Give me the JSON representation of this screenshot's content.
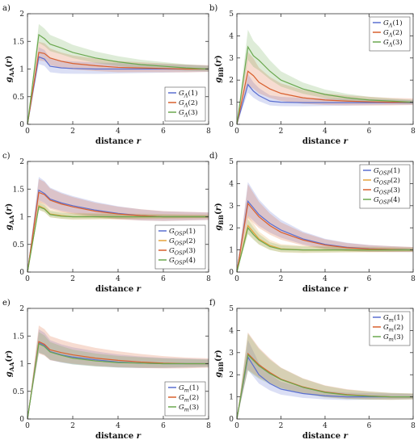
{
  "chart_data": [
    {
      "panel": "a)",
      "type": "line",
      "xlabel": "distance r",
      "ylabel": "g_AA(r)",
      "xlim": [
        0,
        8
      ],
      "ylim": [
        0,
        2
      ],
      "xticks": [
        0,
        2,
        4,
        6,
        8
      ],
      "yticks": [
        0,
        0.5,
        1,
        1.5,
        2
      ],
      "legend": "bottom-right",
      "x": [
        0,
        0.5,
        0.75,
        1,
        1.5,
        2,
        3,
        4,
        5,
        6,
        7,
        8
      ],
      "series": [
        {
          "name": "GΛ(1)",
          "color": "#5b6fd0",
          "values": [
            0,
            1.22,
            1.18,
            1.05,
            1.02,
            1.01,
            1.0,
            1.0,
            1.0,
            1.0,
            1.0,
            1.0
          ],
          "band": 0.18
        },
        {
          "name": "GΛ(2)",
          "color": "#d9602e",
          "values": [
            0,
            1.3,
            1.28,
            1.2,
            1.14,
            1.1,
            1.06,
            1.03,
            1.02,
            1.01,
            1.0,
            1.0
          ],
          "band": 0.2
        },
        {
          "name": "GΛ(3)",
          "color": "#6aa84f",
          "values": [
            0,
            1.62,
            1.55,
            1.45,
            1.38,
            1.3,
            1.2,
            1.13,
            1.08,
            1.05,
            1.02,
            1.0
          ],
          "band": 0.2
        }
      ]
    },
    {
      "panel": "b)",
      "type": "line",
      "xlabel": "distance r",
      "ylabel": "g_BB(r)",
      "xlim": [
        0,
        8
      ],
      "ylim": [
        0,
        5
      ],
      "xticks": [
        0,
        2,
        4,
        6,
        8
      ],
      "yticks": [
        0,
        1,
        2,
        3,
        4,
        5
      ],
      "legend": "top-right",
      "x": [
        0,
        0.5,
        0.75,
        1,
        1.5,
        2,
        3,
        4,
        5,
        6,
        7,
        8
      ],
      "series": [
        {
          "name": "GΛ(1)",
          "color": "#5b6fd0",
          "values": [
            0,
            1.8,
            1.5,
            1.3,
            1.05,
            1.0,
            0.98,
            0.98,
            0.98,
            0.98,
            0.98,
            0.98
          ],
          "band": 0.5
        },
        {
          "name": "GΛ(2)",
          "color": "#d9602e",
          "values": [
            0,
            2.4,
            2.2,
            1.9,
            1.6,
            1.4,
            1.2,
            1.1,
            1.05,
            1.02,
            1.0,
            1.0
          ],
          "band": 0.9
        },
        {
          "name": "GΛ(3)",
          "color": "#6aa84f",
          "values": [
            0,
            3.5,
            3.1,
            2.9,
            2.4,
            2.0,
            1.6,
            1.35,
            1.2,
            1.1,
            1.05,
            1.0
          ],
          "band": 0.8
        }
      ]
    },
    {
      "panel": "c)",
      "type": "line",
      "xlabel": "distance r",
      "ylabel": "g_AA(r)",
      "xlim": [
        0,
        8
      ],
      "ylim": [
        0,
        2
      ],
      "xticks": [
        0,
        2,
        4,
        6,
        8
      ],
      "yticks": [
        0,
        0.5,
        1,
        1.5,
        2
      ],
      "legend": "bottom-right",
      "x": [
        0,
        0.5,
        0.75,
        1,
        1.5,
        2,
        3,
        4,
        5,
        6,
        7,
        8
      ],
      "series": [
        {
          "name": "GOSP(1)",
          "color": "#5b6fd0",
          "values": [
            0,
            1.48,
            1.42,
            1.32,
            1.25,
            1.2,
            1.12,
            1.06,
            1.02,
            1.0,
            1.0,
            1.0
          ],
          "band": 0.25
        },
        {
          "name": "GOSP(2)",
          "color": "#e6a23c",
          "values": [
            0,
            1.2,
            1.15,
            1.05,
            1.02,
            1.0,
            1.0,
            1.0,
            1.0,
            1.0,
            1.0,
            1.0
          ],
          "band": 0.1
        },
        {
          "name": "GOSP(3)",
          "color": "#d9602e",
          "values": [
            0,
            1.44,
            1.4,
            1.3,
            1.23,
            1.18,
            1.1,
            1.05,
            1.02,
            1.0,
            1.0,
            1.0
          ],
          "band": 0.25
        },
        {
          "name": "GOSP(4)",
          "color": "#6aa84f",
          "values": [
            0,
            1.18,
            1.14,
            1.04,
            1.01,
            1.0,
            1.0,
            1.0,
            1.0,
            1.0,
            1.0,
            1.0
          ],
          "band": 0.08
        }
      ]
    },
    {
      "panel": "d)",
      "type": "line",
      "xlabel": "distance r",
      "ylabel": "g_BB(r)",
      "xlim": [
        0,
        8
      ],
      "ylim": [
        0,
        5
      ],
      "xticks": [
        0,
        2,
        4,
        6,
        8
      ],
      "yticks": [
        0,
        1,
        2,
        3,
        4,
        5
      ],
      "legend": "top-right",
      "x": [
        0,
        0.5,
        0.75,
        1,
        1.5,
        2,
        3,
        4,
        5,
        6,
        7,
        8
      ],
      "series": [
        {
          "name": "GOSP(1)",
          "color": "#5b6fd0",
          "values": [
            0,
            3.2,
            2.9,
            2.6,
            2.2,
            1.9,
            1.5,
            1.25,
            1.12,
            1.05,
            1.02,
            1.0
          ],
          "band": 0.9
        },
        {
          "name": "GOSP(2)",
          "color": "#e6a23c",
          "values": [
            0,
            2.1,
            1.8,
            1.5,
            1.2,
            1.05,
            1.0,
            1.0,
            1.0,
            1.0,
            1.0,
            1.0
          ],
          "band": 0.5
        },
        {
          "name": "GOSP(3)",
          "color": "#d9602e",
          "values": [
            0,
            3.1,
            2.8,
            2.5,
            2.1,
            1.8,
            1.45,
            1.22,
            1.1,
            1.04,
            1.02,
            1.0
          ],
          "band": 0.9
        },
        {
          "name": "GOSP(4)",
          "color": "#6aa84f",
          "values": [
            0,
            2.0,
            1.7,
            1.45,
            1.15,
            1.03,
            1.0,
            1.0,
            1.0,
            1.0,
            1.0,
            1.0
          ],
          "band": 0.4
        }
      ]
    },
    {
      "panel": "e)",
      "type": "line",
      "xlabel": "distance r",
      "ylabel": "g_AA(r)",
      "xlim": [
        0,
        8
      ],
      "ylim": [
        0,
        2
      ],
      "xticks": [
        0,
        2,
        4,
        6,
        8
      ],
      "yticks": [
        0,
        0.5,
        1,
        1.5,
        2
      ],
      "legend": "bottom-right",
      "x": [
        0,
        0.5,
        0.75,
        1,
        1.5,
        2,
        3,
        4,
        5,
        6,
        7,
        8
      ],
      "series": [
        {
          "name": "Gm(1)",
          "color": "#5b6fd0",
          "values": [
            0,
            1.38,
            1.33,
            1.22,
            1.16,
            1.12,
            1.07,
            1.03,
            1.01,
            1.0,
            1.0,
            1.0
          ],
          "band": 0.25
        },
        {
          "name": "Gm(2)",
          "color": "#d9602e",
          "values": [
            0,
            1.4,
            1.35,
            1.25,
            1.2,
            1.16,
            1.1,
            1.06,
            1.03,
            1.01,
            1.0,
            1.0
          ],
          "band": 0.3
        },
        {
          "name": "Gm(3)",
          "color": "#6aa84f",
          "values": [
            0,
            1.36,
            1.31,
            1.21,
            1.15,
            1.1,
            1.05,
            1.02,
            1.01,
            1.0,
            1.0,
            1.0
          ],
          "band": 0.22
        }
      ]
    },
    {
      "panel": "f)",
      "type": "line",
      "xlabel": "distance r",
      "ylabel": "g_BB(r)",
      "xlim": [
        0,
        8
      ],
      "ylim": [
        0,
        5
      ],
      "xticks": [
        0,
        2,
        4,
        6,
        8
      ],
      "yticks": [
        0,
        1,
        2,
        3,
        4,
        5
      ],
      "legend": "top-right",
      "x": [
        0,
        0.5,
        0.75,
        1,
        1.5,
        2,
        3,
        4,
        5,
        6,
        7,
        8
      ],
      "series": [
        {
          "name": "Gm(1)",
          "color": "#5b6fd0",
          "values": [
            0,
            2.8,
            2.4,
            2.0,
            1.6,
            1.35,
            1.15,
            1.05,
            1.0,
            1.0,
            1.0,
            1.0
          ],
          "band": 0.8
        },
        {
          "name": "Gm(2)",
          "color": "#d9602e",
          "values": [
            0,
            2.95,
            2.7,
            2.45,
            2.1,
            1.8,
            1.45,
            1.22,
            1.1,
            1.04,
            1.0,
            1.0
          ],
          "band": 1.0
        },
        {
          "name": "Gm(3)",
          "color": "#6aa84f",
          "values": [
            0,
            2.9,
            2.65,
            2.4,
            2.05,
            1.78,
            1.43,
            1.2,
            1.08,
            1.03,
            1.0,
            1.0
          ],
          "band": 1.0
        }
      ]
    }
  ]
}
